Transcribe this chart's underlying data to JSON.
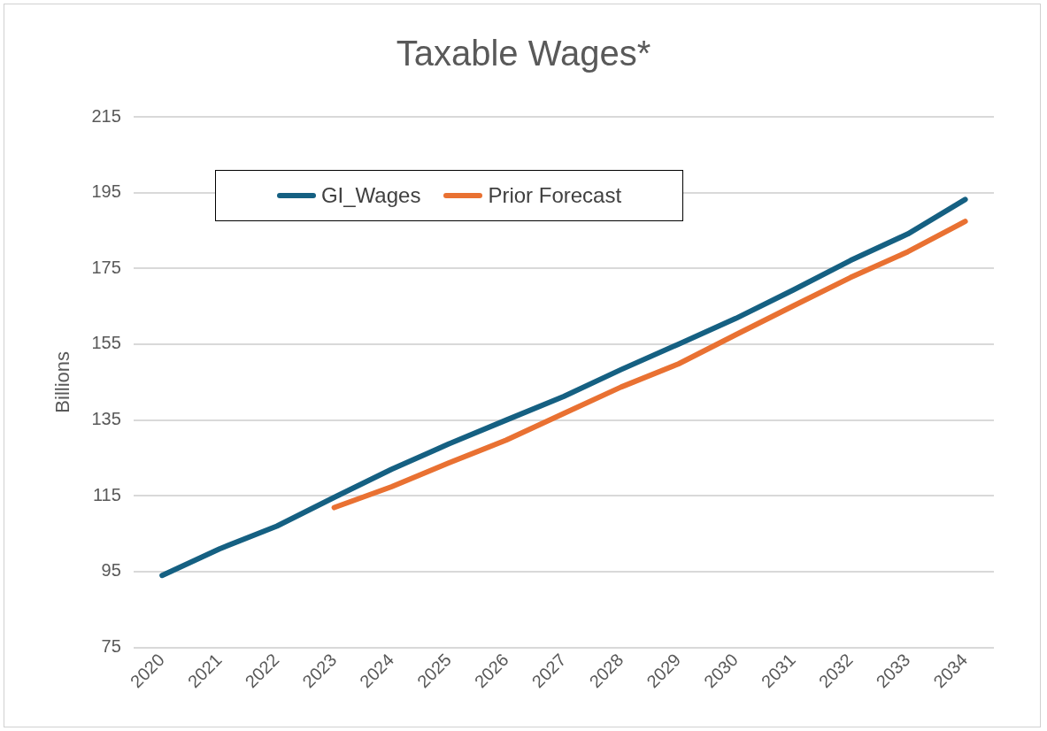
{
  "chart_data": {
    "type": "line",
    "title": "Taxable Wages*",
    "ylabel": "Billions",
    "categories": [
      "2020",
      "2021",
      "2022",
      "2023",
      "2024",
      "2025",
      "2026",
      "2027",
      "2028",
      "2029",
      "2030",
      "2031",
      "2032",
      "2033",
      "2034"
    ],
    "series": [
      {
        "name": "GI_Wages",
        "color": "#156082",
        "values": [
          94,
          101,
          107,
          114.6,
          122,
          128.7,
          135,
          141.2,
          148.3,
          155,
          161.8,
          169.3,
          177.1,
          184.1,
          193.2
        ]
      },
      {
        "name": "Prior Forecast",
        "color": "#e97132",
        "values": [
          null,
          null,
          null,
          111.9,
          117.4,
          123.7,
          129.7,
          136.7,
          143.7,
          149.8,
          157.5,
          165.1,
          172.6,
          179.4,
          187.4
        ]
      }
    ],
    "ylim": [
      75,
      215
    ],
    "yticks": [
      75,
      95,
      115,
      135,
      155,
      175,
      195,
      215
    ],
    "grid": "y",
    "legend": "top left",
    "marker": "none",
    "line_style": "solid"
  }
}
